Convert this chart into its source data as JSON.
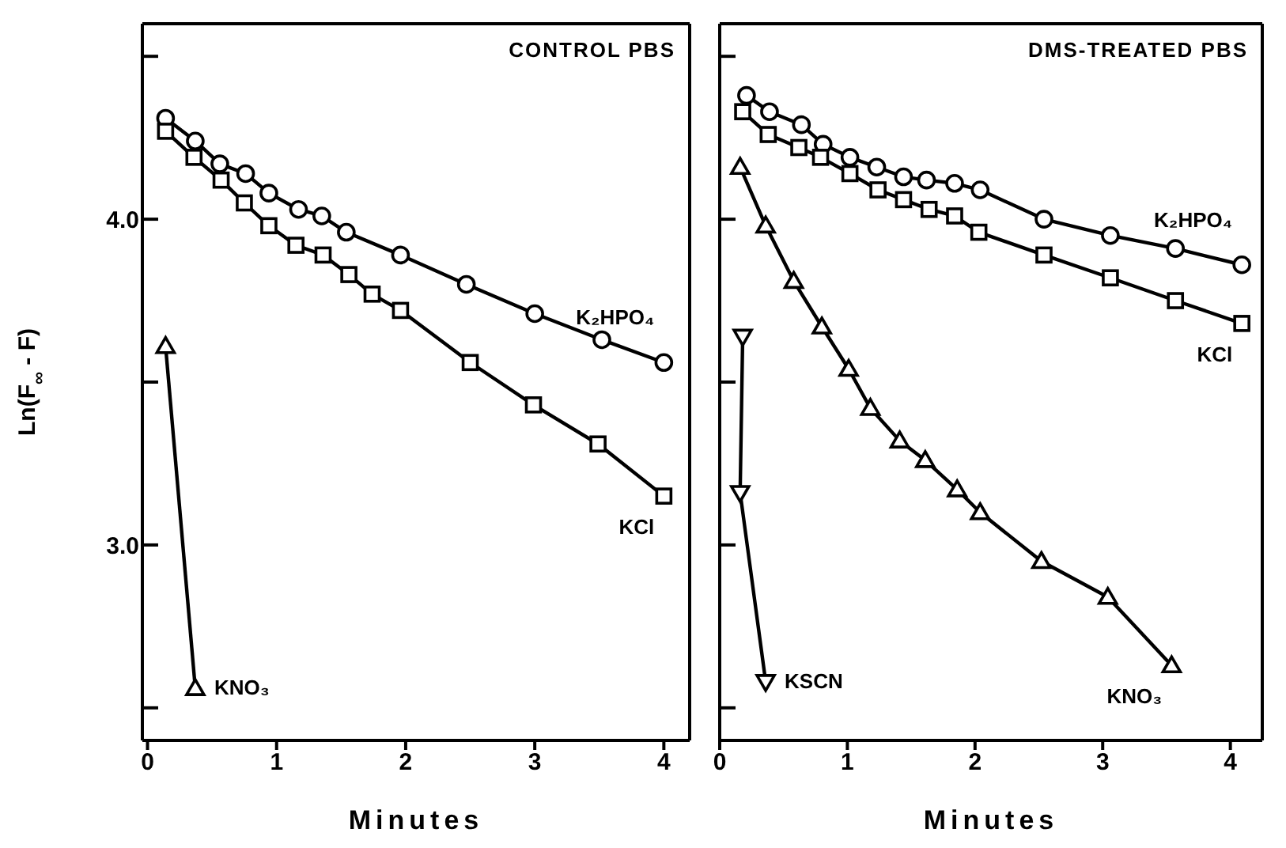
{
  "chart_data": [
    {
      "type": "line",
      "title": "CONTROL PBS",
      "xlabel": "Minutes",
      "ylabel": "Ln(F$_{∞}$ - F)",
      "xlim": [
        -0.04,
        4.2
      ],
      "xticks": [
        0,
        1,
        2,
        3,
        4
      ],
      "ylim": [
        2.4,
        4.6
      ],
      "yticks": [
        {
          "value": 2.5,
          "label": null
        },
        {
          "value": 3,
          "label": "3.0"
        },
        {
          "value": 3.5,
          "label": null
        },
        {
          "value": 4,
          "label": "4.0"
        },
        {
          "value": 4.5,
          "label": null
        }
      ],
      "tick_labels": true,
      "series": [
        {
          "name": "K₂HPO₄",
          "color": "#000000",
          "marker": "circle",
          "x": [
            0.14,
            0.37,
            0.56,
            0.76,
            0.94,
            1.17,
            1.35,
            1.54,
            1.96,
            2.47,
            3.0,
            3.52,
            4.0
          ],
          "values": [
            4.31,
            4.24,
            4.17,
            4.14,
            4.08,
            4.03,
            4.01,
            3.96,
            3.89,
            3.8,
            3.71,
            3.63,
            3.56
          ]
        },
        {
          "name": "KCl",
          "color": "#000000",
          "marker": "square",
          "x": [
            0.14,
            0.36,
            0.57,
            0.75,
            0.94,
            1.15,
            1.36,
            1.56,
            1.74,
            1.96,
            2.5,
            2.99,
            3.49,
            4.0
          ],
          "values": [
            4.27,
            4.19,
            4.12,
            4.05,
            3.98,
            3.92,
            3.89,
            3.83,
            3.77,
            3.72,
            3.56,
            3.43,
            3.31,
            3.15
          ]
        },
        {
          "name": "KNO₃",
          "color": "#000000",
          "marker": "triangle",
          "x": [
            0.14,
            0.37
          ],
          "values": [
            3.61,
            2.56
          ]
        }
      ]
    },
    {
      "type": "line",
      "title": "DMS-TREATED PBS",
      "xlabel": "Minutes",
      "xlim": [
        0,
        4.25
      ],
      "xticks": [
        0,
        1,
        2,
        3,
        4
      ],
      "ylim": [
        2.4,
        4.6
      ],
      "yticks": [
        {
          "value": 2.5,
          "label": null
        },
        {
          "value": 3,
          "label": null
        },
        {
          "value": 3.5,
          "label": null
        },
        {
          "value": 4,
          "label": null
        },
        {
          "value": 4.5,
          "label": null
        }
      ],
      "tick_labels": "x",
      "series": [
        {
          "name": "K₂HPO₄",
          "color": "#000000",
          "marker": "circle",
          "x": [
            0.21,
            0.39,
            0.64,
            0.81,
            1.02,
            1.23,
            1.44,
            1.62,
            1.84,
            2.04,
            2.54,
            3.06,
            3.57,
            4.09
          ],
          "values": [
            4.38,
            4.33,
            4.29,
            4.23,
            4.19,
            4.16,
            4.13,
            4.12,
            4.11,
            4.09,
            4.0,
            3.95,
            3.91,
            3.86
          ]
        },
        {
          "name": "KCl",
          "color": "#000000",
          "marker": "square",
          "x": [
            0.18,
            0.38,
            0.62,
            0.79,
            1.02,
            1.24,
            1.44,
            1.64,
            1.84,
            2.03,
            2.54,
            3.06,
            3.57,
            4.09
          ],
          "values": [
            4.33,
            4.26,
            4.22,
            4.19,
            4.14,
            4.09,
            4.06,
            4.03,
            4.01,
            3.96,
            3.89,
            3.82,
            3.75,
            3.68
          ]
        },
        {
          "name": "KNO₃",
          "color": "#000000",
          "marker": "triangle",
          "x": [
            0.16,
            0.36,
            0.58,
            0.8,
            1.01,
            1.18,
            1.41,
            1.61,
            1.86,
            2.04,
            2.52,
            3.04,
            3.54
          ],
          "values": [
            4.16,
            3.98,
            3.81,
            3.67,
            3.54,
            3.42,
            3.32,
            3.26,
            3.17,
            3.1,
            2.95,
            2.84,
            2.63
          ]
        },
        {
          "name": "KSCN",
          "color": "#000000",
          "marker": "triangle-down",
          "x": [
            0.18,
            0.16,
            0.36
          ],
          "values": [
            3.64,
            3.16,
            2.58
          ]
        }
      ]
    }
  ]
}
